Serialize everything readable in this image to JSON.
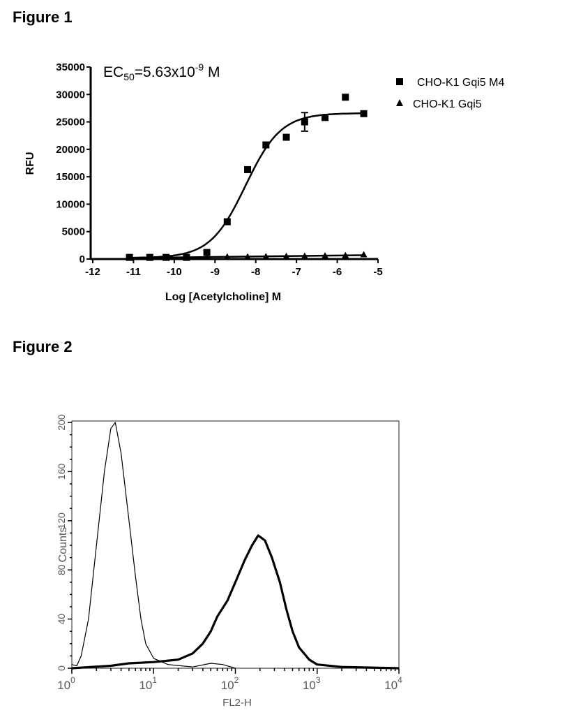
{
  "chart_data": [
    {
      "type": "scatter",
      "title": "Figure 1",
      "annotation": {
        "prefix": "EC",
        "sub": "50",
        "mid": "=5.63x10",
        "sup": "-9",
        "suffix": " M"
      },
      "xlabel": "Log [Acetylcholine] M",
      "ylabel": "RFU",
      "xlim": [
        -12,
        -5
      ],
      "ylim": [
        0,
        35000
      ],
      "xticks": [
        -12,
        -11,
        -10,
        -9,
        -8,
        -7,
        -6,
        -5
      ],
      "yticks": [
        0,
        5000,
        10000,
        15000,
        20000,
        25000,
        30000,
        35000
      ],
      "grid": false,
      "legend_placement": "right",
      "series": [
        {
          "name": "CHO-K1 Gqi5 M4",
          "marker": "square",
          "x": [
            -11.1,
            -10.6,
            -10.2,
            -9.7,
            -9.2,
            -8.7,
            -8.2,
            -7.75,
            -7.25,
            -6.8,
            -6.3,
            -5.8,
            -5.35
          ],
          "y": [
            300,
            300,
            300,
            300,
            1200,
            6800,
            16300,
            20800,
            22200,
            25000,
            25800,
            29500,
            26500
          ],
          "error_bars": [
            {
              "x": -6.8,
              "low": 23300,
              "high": 26700
            }
          ],
          "fit": {
            "type": "sigmoid",
            "bottom": 200,
            "top": 26600,
            "logEC50": -8.25,
            "hill": 1
          }
        },
        {
          "name": "CHO-K1 Gqi5",
          "marker": "triangle",
          "x": [
            -11.1,
            -10.6,
            -10.2,
            -9.7,
            -9.2,
            -8.7,
            -8.2,
            -7.75,
            -7.25,
            -6.8,
            -6.3,
            -5.8,
            -5.35
          ],
          "y": [
            200,
            200,
            200,
            250,
            250,
            300,
            300,
            350,
            400,
            450,
            500,
            550,
            700
          ],
          "fit": {
            "type": "line"
          }
        }
      ]
    },
    {
      "type": "line",
      "title": "Figure 2",
      "xlabel": "FL2-H",
      "ylabel": "Counts",
      "xscale": "log",
      "xlim": [
        1,
        10000
      ],
      "ylim": [
        0,
        200
      ],
      "xticks": [
        {
          "base": "10",
          "exp": "0"
        },
        {
          "base": "10",
          "exp": "1"
        },
        {
          "base": "10",
          "exp": "2"
        },
        {
          "base": "10",
          "exp": "3"
        },
        {
          "base": "10",
          "exp": "4"
        }
      ],
      "yticks": [
        0,
        40,
        80,
        120,
        160,
        200
      ],
      "grid": false,
      "series": [
        {
          "style": "thin",
          "x": [
            1,
            1.15,
            1.3,
            1.6,
            2,
            2.5,
            3,
            3.4,
            4,
            5,
            6,
            7,
            8,
            10,
            15,
            30,
            50,
            70,
            100
          ],
          "y": [
            3,
            2,
            10,
            40,
            100,
            160,
            195,
            200,
            175,
            120,
            75,
            40,
            20,
            8,
            3,
            1,
            4,
            3,
            0
          ]
        },
        {
          "style": "thick",
          "x": [
            1,
            3,
            5,
            10,
            20,
            30,
            40,
            50,
            60,
            80,
            100,
            130,
            160,
            190,
            230,
            280,
            350,
            420,
            500,
            600,
            800,
            1000,
            2000,
            10000
          ],
          "y": [
            0,
            2,
            4,
            5,
            7,
            12,
            20,
            30,
            42,
            55,
            70,
            88,
            100,
            108,
            104,
            90,
            70,
            48,
            30,
            17,
            7,
            3,
            1,
            0
          ]
        }
      ]
    }
  ]
}
